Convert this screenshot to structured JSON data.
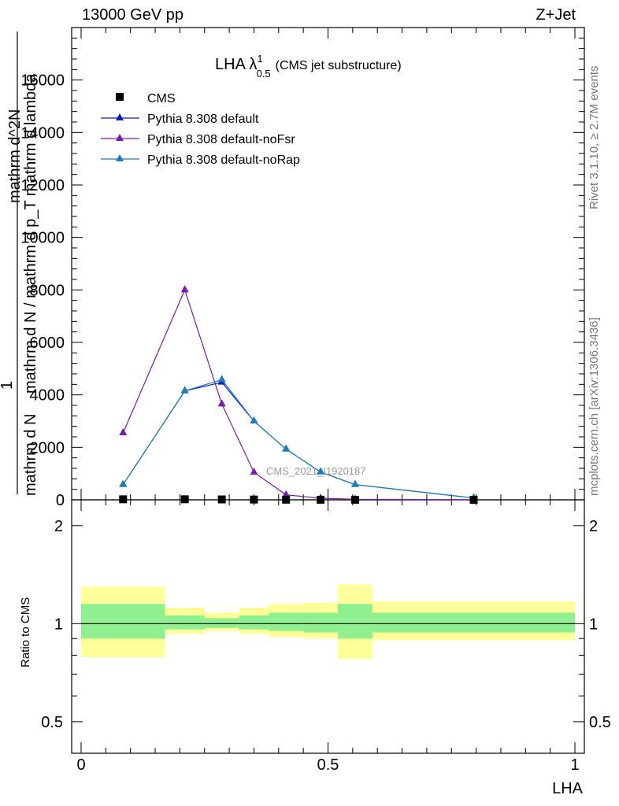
{
  "header": {
    "left": "13000 GeV pp",
    "right": "Z+Jet"
  },
  "side_labels": {
    "rivet": "Rivet 3.1.10, ≥ 2.7M events",
    "mcplots": "mcplots.cern.ch [arXiv:1306.3436]"
  },
  "plot_title": {
    "main": "LHA λ",
    "sup": "1",
    "sub": "0.5",
    "extra": "(CMS jet substructure)"
  },
  "analysis_label": "CMS_2021_I1920187",
  "ylabel_main": [
    "mathrm d N",
    "1",
    "mathrm d N / mathrm d p_T mathrm d lambda",
    "mathrm d^2N"
  ],
  "ylabel_ratio": "Ratio to CMS",
  "xlabel": "LHA",
  "colors": {
    "cms": "#000000",
    "default": "#0d1bbf",
    "noFsr": "#7a1ab0",
    "noRap": "#1a7fb8",
    "band_inner": "#90f090",
    "band_outer": "#ffff99"
  },
  "chart_data": [
    {
      "type": "line",
      "panel": "main",
      "xlim": [
        -0.02,
        1.02
      ],
      "ylim": [
        0,
        18000
      ],
      "yticks": [
        "2000",
        "4000",
        "6000",
        "8000",
        "10000",
        "12000",
        "14000",
        "16000"
      ],
      "yticks_zero": "0",
      "legend_position": "top-left",
      "series": [
        {
          "name": "CMS",
          "marker": "square",
          "x": [
            0.085,
            0.21,
            0.285,
            0.35,
            0.415,
            0.485,
            0.555,
            0.795
          ],
          "y": [
            20,
            20,
            15,
            10,
            5,
            3,
            2,
            1
          ]
        },
        {
          "name": "Pythia 8.308 default",
          "marker": "triangle",
          "x": [
            0.085,
            0.21,
            0.285,
            0.35,
            0.415,
            0.485,
            0.555,
            0.795
          ],
          "y": [
            580,
            4150,
            4480,
            3000,
            1930,
            1060,
            580,
            70
          ]
        },
        {
          "name": "Pythia 8.308 default-noFsr",
          "marker": "triangle",
          "x": [
            0.085,
            0.21,
            0.285,
            0.35,
            0.415,
            0.485,
            0.555,
            0.795
          ],
          "y": [
            2550,
            8000,
            3650,
            1050,
            190,
            60,
            20,
            5
          ]
        },
        {
          "name": "Pythia 8.308 default-noRap",
          "marker": "triangle",
          "x": [
            0.085,
            0.21,
            0.285,
            0.35,
            0.415,
            0.485,
            0.555,
            0.795
          ],
          "y": [
            580,
            4150,
            4580,
            3000,
            1930,
            1060,
            580,
            70
          ]
        }
      ]
    },
    {
      "type": "area",
      "panel": "ratio",
      "scale": "log",
      "xlim": [
        -0.02,
        1.02
      ],
      "ylim": [
        0.4,
        2.4
      ],
      "yticks": [
        "0.5",
        "1",
        "2"
      ],
      "xticks": [
        "0",
        "0.5",
        "1"
      ],
      "reference": 1.0,
      "bins": [
        {
          "x0": 0.0,
          "x1": 0.17,
          "inner": [
            0.9,
            1.15
          ],
          "outer": [
            0.79,
            1.3
          ]
        },
        {
          "x0": 0.17,
          "x1": 0.25,
          "inner": [
            0.96,
            1.06
          ],
          "outer": [
            0.93,
            1.12
          ]
        },
        {
          "x0": 0.25,
          "x1": 0.32,
          "inner": [
            0.97,
            1.04
          ],
          "outer": [
            0.95,
            1.08
          ]
        },
        {
          "x0": 0.32,
          "x1": 0.38,
          "inner": [
            0.96,
            1.06
          ],
          "outer": [
            0.93,
            1.12
          ]
        },
        {
          "x0": 0.38,
          "x1": 0.45,
          "inner": [
            0.95,
            1.08
          ],
          "outer": [
            0.91,
            1.15
          ]
        },
        {
          "x0": 0.45,
          "x1": 0.52,
          "inner": [
            0.94,
            1.08
          ],
          "outer": [
            0.9,
            1.16
          ]
        },
        {
          "x0": 0.52,
          "x1": 0.59,
          "inner": [
            0.9,
            1.15
          ],
          "outer": [
            0.78,
            1.32
          ]
        },
        {
          "x0": 0.59,
          "x1": 1.0,
          "inner": [
            0.94,
            1.08
          ],
          "outer": [
            0.89,
            1.17
          ]
        }
      ]
    }
  ]
}
